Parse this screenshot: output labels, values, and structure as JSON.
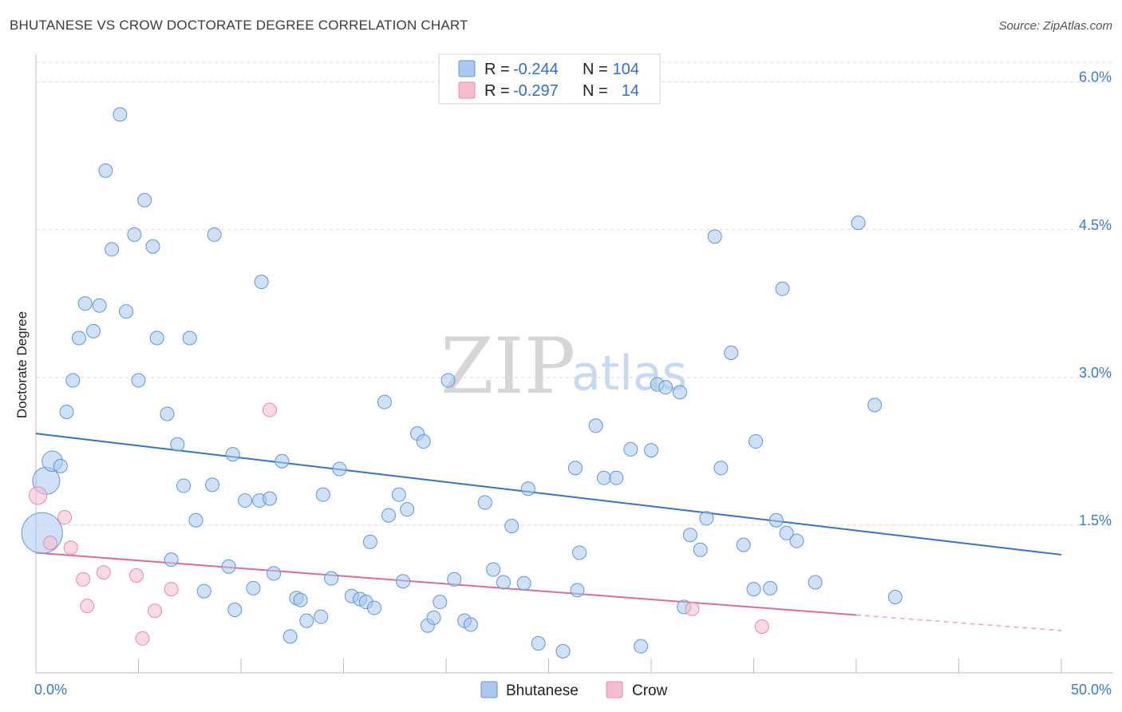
{
  "title": "BHUTANESE VS CROW DOCTORATE DEGREE CORRELATION CHART",
  "source": "Source: ZipAtlas.com",
  "watermark": {
    "zip": "ZIP",
    "atlas": "atlas"
  },
  "colors": {
    "bhutanese_fill": "#aac8f0",
    "bhutanese_stroke": "#5e97dc",
    "bhutanese_line": "#2f74d0",
    "crow_fill": "#f7bccc",
    "crow_stroke": "#e98aa6",
    "crow_line": "#e06b94",
    "grid": "#d9d9d9",
    "tick_text": "#3a7bd5"
  },
  "legend": {
    "rows": [
      {
        "r_label": "R =",
        "r_value": "-0.244",
        "n_label": "N =",
        "n_value": "104"
      },
      {
        "r_label": "R =",
        "r_value": "-0.297",
        "n_label": "N =",
        "n_value": "14"
      }
    ]
  },
  "chart_data": {
    "type": "scatter",
    "title": "BHUTANESE VS CROW DOCTORATE DEGREE CORRELATION CHART",
    "xlabel": "",
    "ylabel": "Doctorate Degree",
    "xlim": [
      0,
      50
    ],
    "ylim": [
      0,
      6.2
    ],
    "x_tick_labels": [
      "0.0%",
      "50.0%"
    ],
    "y_ticks": [
      1.5,
      3.0,
      4.5,
      6.0
    ],
    "y_tick_labels": [
      "1.5%",
      "3.0%",
      "4.5%",
      "6.0%"
    ],
    "grid": true,
    "series": [
      {
        "name": "Bhutanese",
        "trend": {
          "x": [
            0,
            50
          ],
          "y": [
            2.43,
            1.2
          ],
          "dashed_from": null
        },
        "points": [
          [
            0.3,
            1.42,
            3
          ],
          [
            0.5,
            1.95,
            2
          ],
          [
            0.8,
            2.15,
            1.5
          ],
          [
            1.2,
            2.1,
            1
          ],
          [
            1.5,
            2.65,
            1
          ],
          [
            1.8,
            2.97,
            1
          ],
          [
            2.1,
            3.4,
            1
          ],
          [
            2.4,
            3.75,
            1
          ],
          [
            2.8,
            3.47,
            1
          ],
          [
            3.1,
            3.73,
            1
          ],
          [
            3.4,
            5.1,
            1
          ],
          [
            3.7,
            4.3,
            1
          ],
          [
            4.1,
            5.67,
            1
          ],
          [
            4.4,
            3.67,
            1
          ],
          [
            4.8,
            4.45,
            1
          ],
          [
            5.0,
            2.97,
            1
          ],
          [
            5.3,
            4.8,
            1
          ],
          [
            5.7,
            4.33,
            1
          ],
          [
            5.9,
            3.4,
            1
          ],
          [
            6.4,
            2.63,
            1
          ],
          [
            6.6,
            1.15,
            1
          ],
          [
            6.9,
            2.32,
            1
          ],
          [
            7.2,
            1.9,
            1
          ],
          [
            7.5,
            3.4,
            1
          ],
          [
            7.8,
            1.55,
            1
          ],
          [
            8.2,
            0.83,
            1
          ],
          [
            8.6,
            1.91,
            1
          ],
          [
            8.7,
            4.45,
            1
          ],
          [
            9.4,
            1.08,
            1
          ],
          [
            9.6,
            2.22,
            1
          ],
          [
            9.7,
            0.64,
            1
          ],
          [
            10.2,
            1.75,
            1
          ],
          [
            10.6,
            0.86,
            1
          ],
          [
            10.9,
            1.75,
            1
          ],
          [
            11.0,
            3.97,
            1
          ],
          [
            11.4,
            1.77,
            1
          ],
          [
            11.6,
            1.01,
            1
          ],
          [
            12.0,
            2.15,
            1
          ],
          [
            12.4,
            0.37,
            1
          ],
          [
            12.7,
            0.76,
            1
          ],
          [
            12.9,
            0.74,
            1
          ],
          [
            13.2,
            0.53,
            1
          ],
          [
            13.9,
            0.57,
            1
          ],
          [
            14.0,
            1.81,
            1
          ],
          [
            14.4,
            0.96,
            1
          ],
          [
            14.8,
            2.07,
            1
          ],
          [
            15.4,
            0.78,
            1
          ],
          [
            15.8,
            0.75,
            1
          ],
          [
            16.1,
            0.72,
            1
          ],
          [
            16.3,
            1.33,
            1
          ],
          [
            16.5,
            0.66,
            1
          ],
          [
            17.0,
            2.75,
            1
          ],
          [
            17.2,
            1.6,
            1
          ],
          [
            17.7,
            1.81,
            1
          ],
          [
            17.9,
            0.93,
            1
          ],
          [
            18.1,
            1.66,
            1
          ],
          [
            18.6,
            2.43,
            1
          ],
          [
            18.9,
            2.35,
            1
          ],
          [
            19.1,
            0.48,
            1
          ],
          [
            19.4,
            0.56,
            1
          ],
          [
            19.7,
            0.72,
            1
          ],
          [
            20.1,
            2.97,
            1
          ],
          [
            20.4,
            0.95,
            1
          ],
          [
            20.9,
            0.53,
            1
          ],
          [
            21.2,
            0.49,
            1
          ],
          [
            21.9,
            1.73,
            1
          ],
          [
            22.3,
            1.05,
            1
          ],
          [
            22.8,
            0.92,
            1
          ],
          [
            23.2,
            1.49,
            1
          ],
          [
            23.8,
            0.91,
            1
          ],
          [
            24.0,
            1.87,
            1
          ],
          [
            24.5,
            0.3,
            1
          ],
          [
            25.7,
            0.22,
            1
          ],
          [
            26.3,
            2.08,
            1
          ],
          [
            26.4,
            0.84,
            1
          ],
          [
            26.5,
            1.22,
            1
          ],
          [
            27.3,
            2.51,
            1
          ],
          [
            27.7,
            1.98,
            1
          ],
          [
            28.3,
            1.98,
            1
          ],
          [
            29.0,
            2.27,
            1
          ],
          [
            29.5,
            0.27,
            1
          ],
          [
            30.0,
            2.26,
            1
          ],
          [
            30.3,
            2.93,
            1
          ],
          [
            30.7,
            2.9,
            1
          ],
          [
            31.4,
            2.85,
            1
          ],
          [
            31.6,
            0.67,
            1
          ],
          [
            31.9,
            1.4,
            1
          ],
          [
            32.4,
            1.25,
            1
          ],
          [
            32.7,
            1.57,
            1
          ],
          [
            33.1,
            4.43,
            1
          ],
          [
            33.4,
            2.08,
            1
          ],
          [
            33.9,
            3.25,
            1
          ],
          [
            34.5,
            1.3,
            1
          ],
          [
            35.0,
            0.85,
            1
          ],
          [
            35.1,
            2.35,
            1
          ],
          [
            35.8,
            0.86,
            1
          ],
          [
            36.1,
            1.55,
            1
          ],
          [
            36.4,
            3.9,
            1
          ],
          [
            36.6,
            1.42,
            1
          ],
          [
            37.1,
            1.34,
            1
          ],
          [
            38.0,
            0.92,
            1
          ],
          [
            40.1,
            4.57,
            1
          ],
          [
            40.9,
            2.72,
            1
          ],
          [
            41.9,
            0.77,
            1
          ]
        ]
      },
      {
        "name": "Crow",
        "trend": {
          "x": [
            0,
            50
          ],
          "y": [
            1.22,
            0.43
          ],
          "dashed_from": 40
        },
        "points": [
          [
            0.1,
            1.8,
            1.3
          ],
          [
            0.7,
            1.32,
            1
          ],
          [
            1.4,
            1.58,
            1
          ],
          [
            1.7,
            1.27,
            1
          ],
          [
            2.3,
            0.95,
            1
          ],
          [
            2.5,
            0.68,
            1
          ],
          [
            3.3,
            1.02,
            1
          ],
          [
            4.9,
            0.99,
            1
          ],
          [
            5.2,
            0.35,
            1
          ],
          [
            5.8,
            0.63,
            1
          ],
          [
            6.6,
            0.85,
            1
          ],
          [
            11.4,
            2.67,
            1
          ],
          [
            32.0,
            0.65,
            1
          ],
          [
            35.4,
            0.47,
            1
          ]
        ]
      }
    ]
  }
}
